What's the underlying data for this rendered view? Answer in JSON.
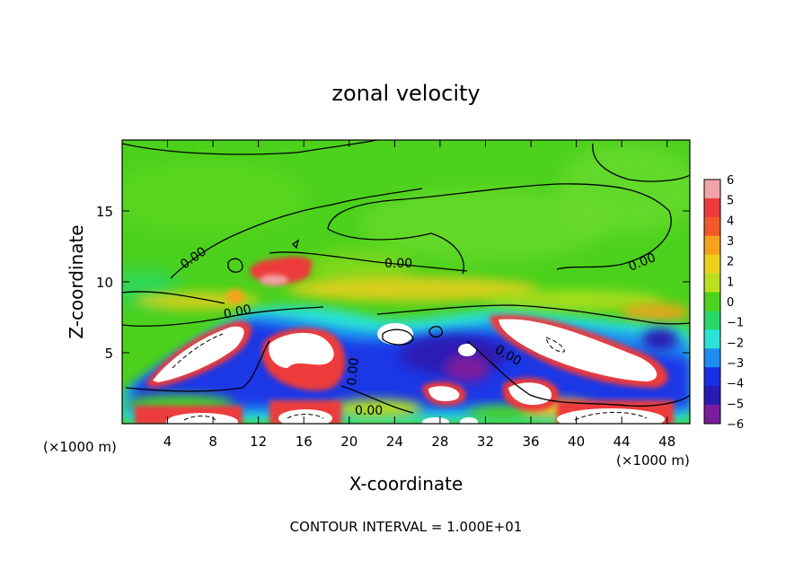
{
  "chart_data": {
    "type": "heatmap",
    "title": "zonal velocity",
    "xlabel": "X-coordinate",
    "ylabel": "Z-coordinate",
    "x_unit_label": "(×1000 m)",
    "x_unit_label_right": "(×1000 m)",
    "xlim": [
      0,
      50
    ],
    "ylim": [
      0,
      20
    ],
    "x_ticks": [
      4,
      8,
      12,
      16,
      20,
      24,
      28,
      32,
      36,
      40,
      44,
      48
    ],
    "y_ticks": [
      5,
      10,
      15
    ],
    "colorbar": {
      "ticks": [
        6,
        5,
        4,
        3,
        2,
        1,
        0,
        -1,
        -2,
        -3,
        -4,
        -5,
        -6
      ],
      "min": -6,
      "max": 6,
      "colors": [
        "#f2a3a8",
        "#ee3a3a",
        "#f25a2a",
        "#f7a21e",
        "#eccf1d",
        "#b8e01e",
        "#4cd11c",
        "#28d86a",
        "#2ae3d6",
        "#1e8cf0",
        "#1a2ee6",
        "#2a1ab4",
        "#7a1c9e"
      ]
    },
    "contour_interval_text": "CONTOUR INTERVAL = 1.000E+01",
    "contour_labels": [
      "0.00",
      "0.00",
      "0.00",
      "0.00",
      "0.00",
      "0.00",
      "0.00"
    ],
    "features": [
      {
        "name": "strong-westward-core-1",
        "x": 6,
        "y": 5,
        "value": -10
      },
      {
        "name": "strong-westward-core-2",
        "x": 38,
        "y": 5,
        "value": -10
      },
      {
        "name": "westward-core-3",
        "x": 16,
        "y": 5.5,
        "value": -9
      },
      {
        "name": "westward-core-4",
        "x": 33,
        "y": 2.5,
        "value": -8
      },
      {
        "name": "westward-core-5",
        "x": 28,
        "y": 2,
        "value": -8
      },
      {
        "name": "westward-core-6",
        "x": 43,
        "y": 0.6,
        "value": -9
      },
      {
        "name": "westward-core-7",
        "x": 8,
        "y": 0.4,
        "value": -8
      },
      {
        "name": "westward-core-8",
        "x": 17,
        "y": 0.6,
        "value": -8
      },
      {
        "name": "eastward-patch-1",
        "x": 13,
        "y": 10.5,
        "value": 4
      },
      {
        "name": "eastward-patch-2",
        "x": 15,
        "y": 11.3,
        "value": 3
      },
      {
        "name": "eastward-band",
        "x": 25,
        "y": 9.5,
        "value": 2
      },
      {
        "name": "negative-band-1",
        "x": 24,
        "y": 6,
        "value": -5
      },
      {
        "name": "negative-band-2",
        "x": 45,
        "y": 6,
        "value": -4
      }
    ]
  }
}
